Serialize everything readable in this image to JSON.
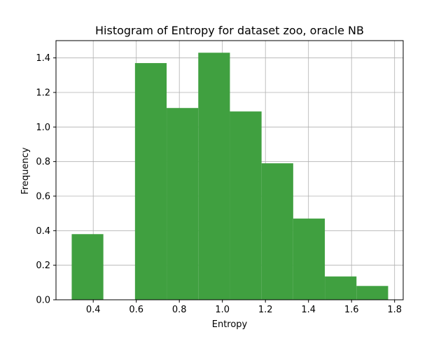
{
  "chart_data": {
    "type": "bar",
    "title": "Histogram of Entropy for dataset zoo, oracle NB",
    "xlabel": "Entropy",
    "ylabel": "Frequency",
    "xlim": [
      0.227,
      1.84
    ],
    "ylim": [
      0,
      1.5
    ],
    "grid": true,
    "bar_color": "#40a040",
    "bins": [
      {
        "x0": 0.3,
        "x1": 0.447,
        "value": 0.38
      },
      {
        "x0": 0.447,
        "x1": 0.594,
        "value": 0.0
      },
      {
        "x0": 0.594,
        "x1": 0.741,
        "value": 1.37
      },
      {
        "x0": 0.741,
        "x1": 0.888,
        "value": 1.11
      },
      {
        "x0": 0.888,
        "x1": 1.035,
        "value": 1.43
      },
      {
        "x0": 1.035,
        "x1": 1.182,
        "value": 1.09
      },
      {
        "x0": 1.182,
        "x1": 1.329,
        "value": 0.79
      },
      {
        "x0": 1.329,
        "x1": 1.476,
        "value": 0.47
      },
      {
        "x0": 1.476,
        "x1": 1.623,
        "value": 0.135
      },
      {
        "x0": 1.623,
        "x1": 1.77,
        "value": 0.08
      }
    ],
    "x_ticks": [
      {
        "value": 0.4,
        "label": "0.4"
      },
      {
        "value": 0.6,
        "label": "0.6"
      },
      {
        "value": 0.8,
        "label": "0.8"
      },
      {
        "value": 1.0,
        "label": "1.0"
      },
      {
        "value": 1.2,
        "label": "1.2"
      },
      {
        "value": 1.4,
        "label": "1.4"
      },
      {
        "value": 1.6,
        "label": "1.6"
      },
      {
        "value": 1.8,
        "label": "1.8"
      }
    ],
    "y_ticks": [
      {
        "value": 0.0,
        "label": "0.0"
      },
      {
        "value": 0.2,
        "label": "0.2"
      },
      {
        "value": 0.4,
        "label": "0.4"
      },
      {
        "value": 0.6,
        "label": "0.6"
      },
      {
        "value": 0.8,
        "label": "0.8"
      },
      {
        "value": 1.0,
        "label": "1.0"
      },
      {
        "value": 1.2,
        "label": "1.2"
      },
      {
        "value": 1.4,
        "label": "1.4"
      }
    ]
  }
}
